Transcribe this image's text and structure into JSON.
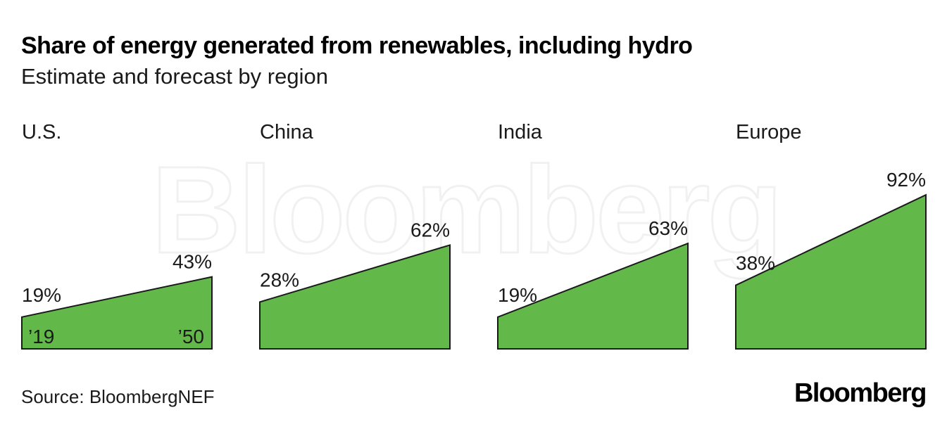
{
  "title": "Share of energy generated from renewables, including hydro",
  "subtitle": "Estimate and forecast by region",
  "source": "Source: BloombergNEF",
  "logo": "Bloomberg",
  "watermark": "Bloomberg",
  "colors": {
    "fill": "#62b94a",
    "stroke": "#1a1a1a",
    "text": "#1a1a1a"
  },
  "chart_data": {
    "type": "area",
    "x_start_label": "’19",
    "x_end_label": "’50",
    "ylim": [
      0,
      100
    ],
    "panels": [
      {
        "name": "U.S.",
        "start": 19,
        "end": 43,
        "start_label": "19%",
        "end_label": "43%"
      },
      {
        "name": "China",
        "start": 28,
        "end": 62,
        "start_label": "28%",
        "end_label": "62%"
      },
      {
        "name": "India",
        "start": 19,
        "end": 63,
        "start_label": "19%",
        "end_label": "63%"
      },
      {
        "name": "Europe",
        "start": 38,
        "end": 92,
        "start_label": "38%",
        "end_label": "92%"
      }
    ]
  }
}
